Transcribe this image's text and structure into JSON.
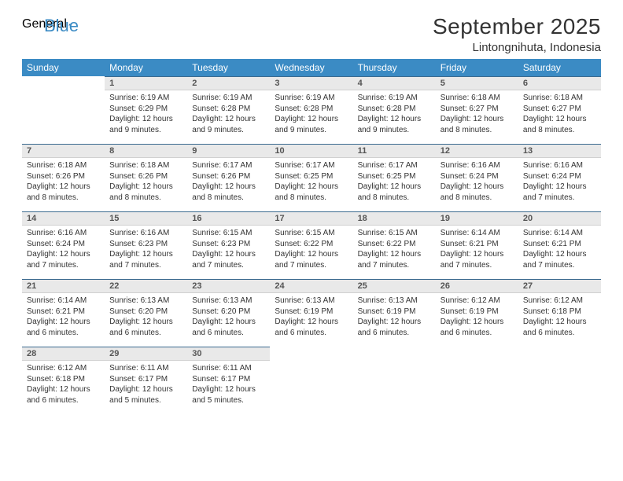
{
  "brand": {
    "part1": "General",
    "part2": "Blue"
  },
  "title": "September 2025",
  "location": "Lintongnihuta, Indonesia",
  "colors": {
    "header_bg": "#3b8bc4",
    "header_text": "#ffffff",
    "daybar_bg": "#e9e9e9",
    "daybar_border_top": "#3b6a8f",
    "text": "#333333",
    "logo_gray": "#6b6b6b",
    "logo_blue": "#3b8bc4"
  },
  "weekdays": [
    "Sunday",
    "Monday",
    "Tuesday",
    "Wednesday",
    "Thursday",
    "Friday",
    "Saturday"
  ],
  "weeks": [
    [
      null,
      {
        "n": "1",
        "sr": "6:19 AM",
        "ss": "6:29 PM",
        "dl": "12 hours and 9 minutes."
      },
      {
        "n": "2",
        "sr": "6:19 AM",
        "ss": "6:28 PM",
        "dl": "12 hours and 9 minutes."
      },
      {
        "n": "3",
        "sr": "6:19 AM",
        "ss": "6:28 PM",
        "dl": "12 hours and 9 minutes."
      },
      {
        "n": "4",
        "sr": "6:19 AM",
        "ss": "6:28 PM",
        "dl": "12 hours and 9 minutes."
      },
      {
        "n": "5",
        "sr": "6:18 AM",
        "ss": "6:27 PM",
        "dl": "12 hours and 8 minutes."
      },
      {
        "n": "6",
        "sr": "6:18 AM",
        "ss": "6:27 PM",
        "dl": "12 hours and 8 minutes."
      }
    ],
    [
      {
        "n": "7",
        "sr": "6:18 AM",
        "ss": "6:26 PM",
        "dl": "12 hours and 8 minutes."
      },
      {
        "n": "8",
        "sr": "6:18 AM",
        "ss": "6:26 PM",
        "dl": "12 hours and 8 minutes."
      },
      {
        "n": "9",
        "sr": "6:17 AM",
        "ss": "6:26 PM",
        "dl": "12 hours and 8 minutes."
      },
      {
        "n": "10",
        "sr": "6:17 AM",
        "ss": "6:25 PM",
        "dl": "12 hours and 8 minutes."
      },
      {
        "n": "11",
        "sr": "6:17 AM",
        "ss": "6:25 PM",
        "dl": "12 hours and 8 minutes."
      },
      {
        "n": "12",
        "sr": "6:16 AM",
        "ss": "6:24 PM",
        "dl": "12 hours and 8 minutes."
      },
      {
        "n": "13",
        "sr": "6:16 AM",
        "ss": "6:24 PM",
        "dl": "12 hours and 7 minutes."
      }
    ],
    [
      {
        "n": "14",
        "sr": "6:16 AM",
        "ss": "6:24 PM",
        "dl": "12 hours and 7 minutes."
      },
      {
        "n": "15",
        "sr": "6:16 AM",
        "ss": "6:23 PM",
        "dl": "12 hours and 7 minutes."
      },
      {
        "n": "16",
        "sr": "6:15 AM",
        "ss": "6:23 PM",
        "dl": "12 hours and 7 minutes."
      },
      {
        "n": "17",
        "sr": "6:15 AM",
        "ss": "6:22 PM",
        "dl": "12 hours and 7 minutes."
      },
      {
        "n": "18",
        "sr": "6:15 AM",
        "ss": "6:22 PM",
        "dl": "12 hours and 7 minutes."
      },
      {
        "n": "19",
        "sr": "6:14 AM",
        "ss": "6:21 PM",
        "dl": "12 hours and 7 minutes."
      },
      {
        "n": "20",
        "sr": "6:14 AM",
        "ss": "6:21 PM",
        "dl": "12 hours and 7 minutes."
      }
    ],
    [
      {
        "n": "21",
        "sr": "6:14 AM",
        "ss": "6:21 PM",
        "dl": "12 hours and 6 minutes."
      },
      {
        "n": "22",
        "sr": "6:13 AM",
        "ss": "6:20 PM",
        "dl": "12 hours and 6 minutes."
      },
      {
        "n": "23",
        "sr": "6:13 AM",
        "ss": "6:20 PM",
        "dl": "12 hours and 6 minutes."
      },
      {
        "n": "24",
        "sr": "6:13 AM",
        "ss": "6:19 PM",
        "dl": "12 hours and 6 minutes."
      },
      {
        "n": "25",
        "sr": "6:13 AM",
        "ss": "6:19 PM",
        "dl": "12 hours and 6 minutes."
      },
      {
        "n": "26",
        "sr": "6:12 AM",
        "ss": "6:19 PM",
        "dl": "12 hours and 6 minutes."
      },
      {
        "n": "27",
        "sr": "6:12 AM",
        "ss": "6:18 PM",
        "dl": "12 hours and 6 minutes."
      }
    ],
    [
      {
        "n": "28",
        "sr": "6:12 AM",
        "ss": "6:18 PM",
        "dl": "12 hours and 6 minutes."
      },
      {
        "n": "29",
        "sr": "6:11 AM",
        "ss": "6:17 PM",
        "dl": "12 hours and 5 minutes."
      },
      {
        "n": "30",
        "sr": "6:11 AM",
        "ss": "6:17 PM",
        "dl": "12 hours and 5 minutes."
      },
      null,
      null,
      null,
      null
    ]
  ],
  "labels": {
    "sunrise": "Sunrise:",
    "sunset": "Sunset:",
    "daylight": "Daylight:"
  }
}
